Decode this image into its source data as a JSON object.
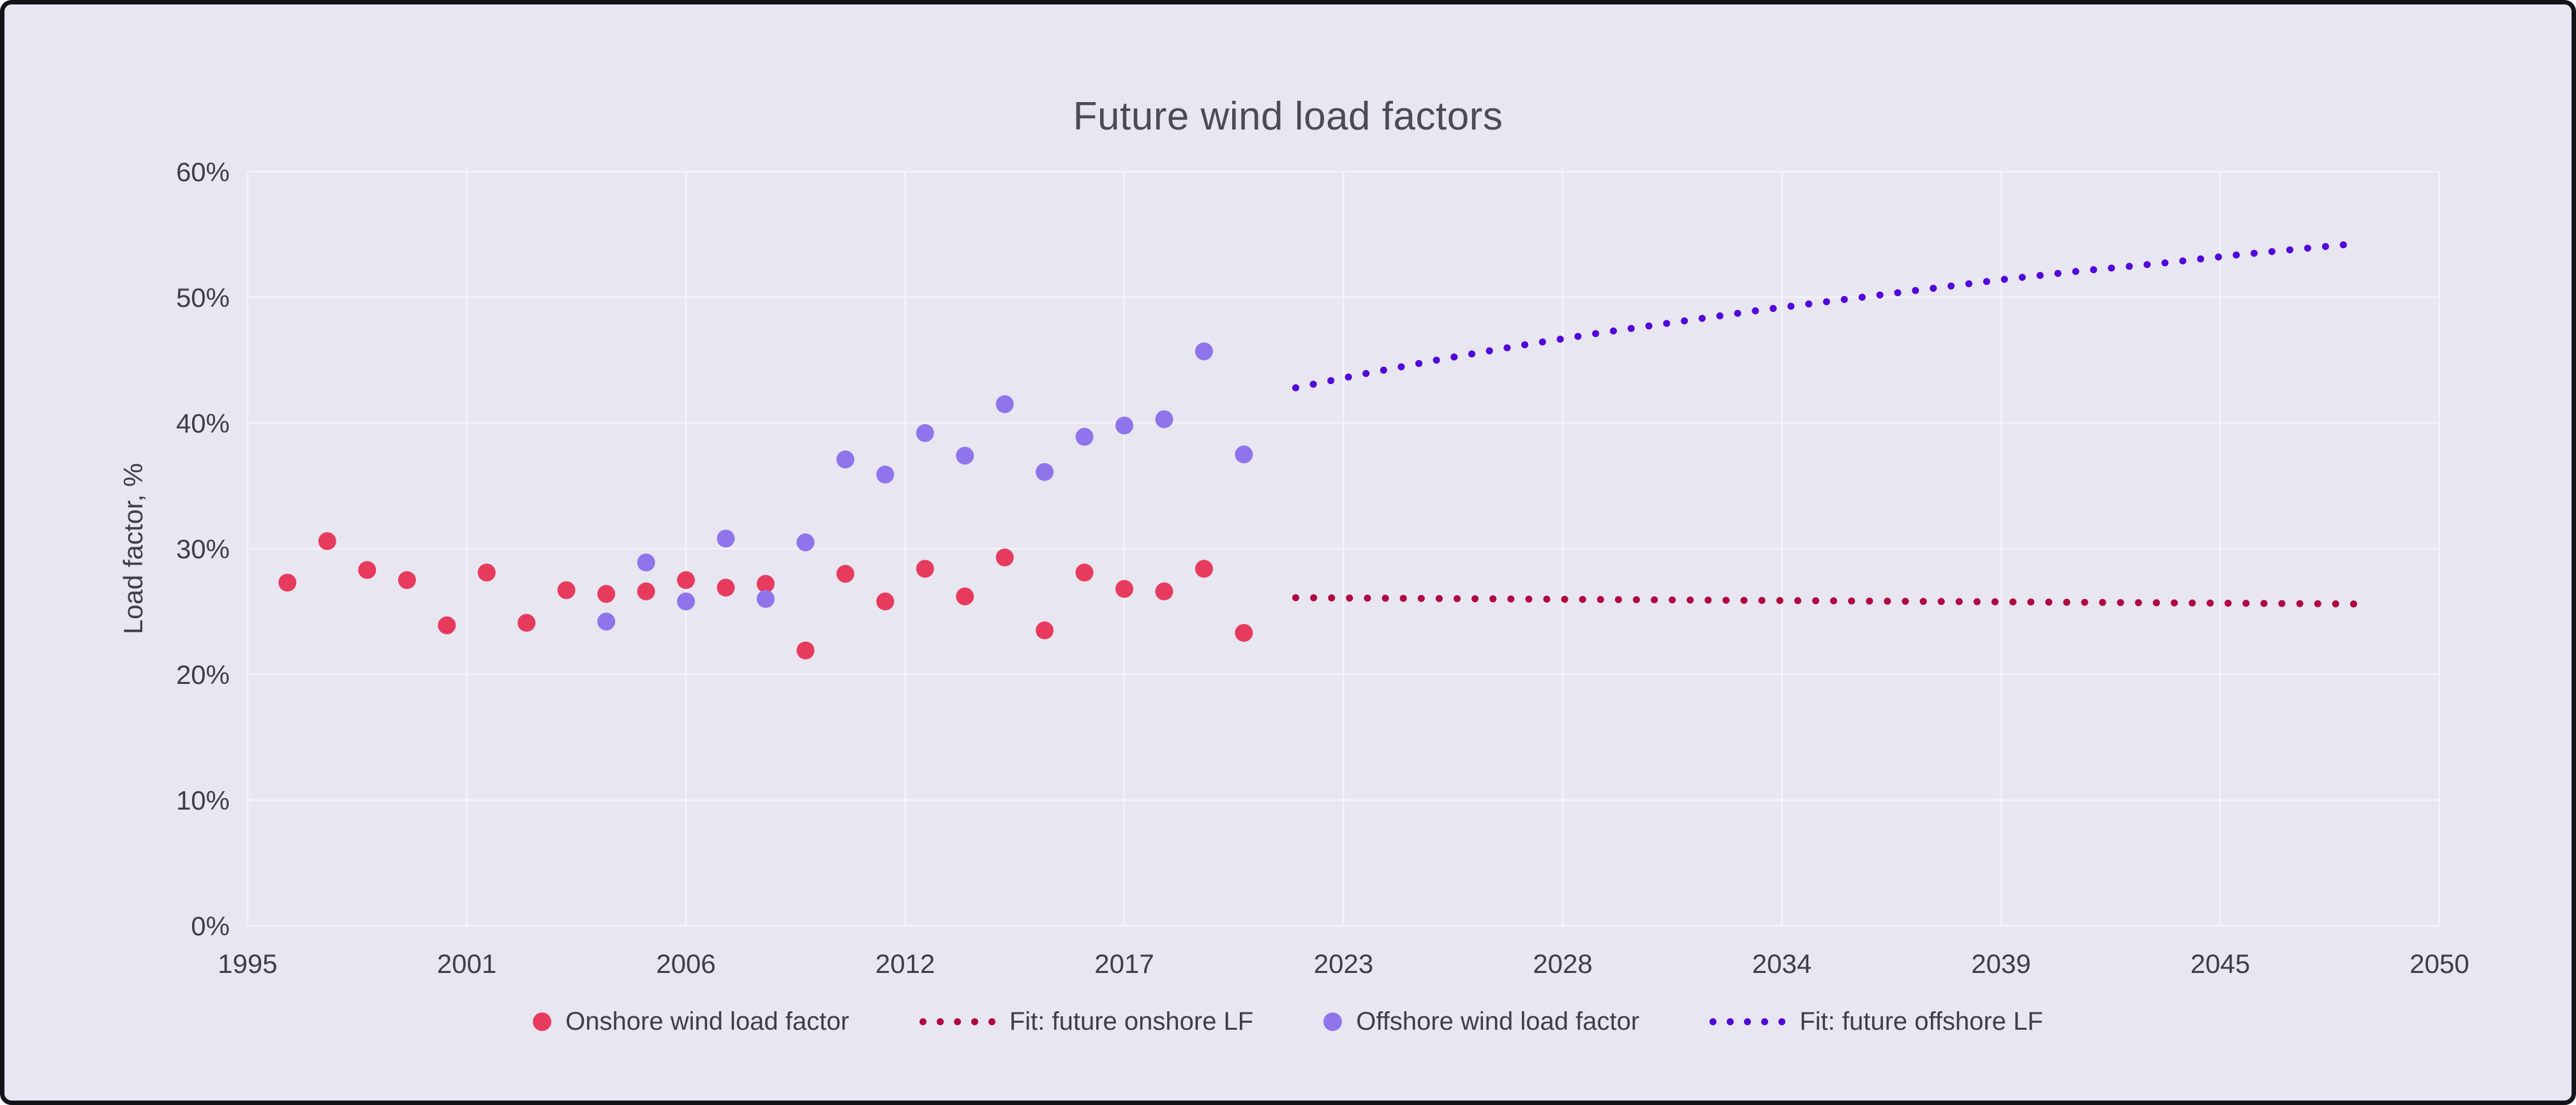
{
  "card": {
    "background": "#e7e6f1",
    "border_color": "#141418"
  },
  "theme": {
    "text_color": "#3e3e46",
    "title_color": "#4b4b52",
    "grid_color": "#f3f2f9"
  },
  "chart_data": {
    "type": "scatter",
    "title": "Future wind load factors",
    "xlabel": "",
    "ylabel": "Load factor, %",
    "xlim": [
      1995,
      2050
    ],
    "ylim": [
      0,
      60
    ],
    "grid": true,
    "legend_position": "bottom",
    "x_ticks": [
      {
        "value": 1995,
        "label": "1995"
      },
      {
        "value": 2000.5,
        "label": "2001"
      },
      {
        "value": 2006,
        "label": "2006"
      },
      {
        "value": 2011.5,
        "label": "2012"
      },
      {
        "value": 2017,
        "label": "2017"
      },
      {
        "value": 2022.5,
        "label": "2023"
      },
      {
        "value": 2028,
        "label": "2028"
      },
      {
        "value": 2033.5,
        "label": "2034"
      },
      {
        "value": 2039,
        "label": "2039"
      },
      {
        "value": 2044.5,
        "label": "2045"
      },
      {
        "value": 2050,
        "label": "2050"
      }
    ],
    "y_ticks": [
      {
        "value": 0,
        "label": "0%"
      },
      {
        "value": 10,
        "label": "10%"
      },
      {
        "value": 20,
        "label": "20%"
      },
      {
        "value": 30,
        "label": "30%"
      },
      {
        "value": 40,
        "label": "40%"
      },
      {
        "value": 50,
        "label": "50%"
      },
      {
        "value": 60,
        "label": "60%"
      }
    ],
    "series": [
      {
        "name": "Onshore wind load factor",
        "mode": "markers",
        "color": "#e73b5e",
        "points": [
          [
            1996,
            27.3
          ],
          [
            1997,
            30.6
          ],
          [
            1998,
            28.3
          ],
          [
            1999,
            27.5
          ],
          [
            2000,
            23.9
          ],
          [
            2001,
            28.1
          ],
          [
            2002,
            24.1
          ],
          [
            2003,
            26.7
          ],
          [
            2004,
            26.4
          ],
          [
            2005,
            26.6
          ],
          [
            2006,
            27.5
          ],
          [
            2007,
            26.9
          ],
          [
            2008,
            27.2
          ],
          [
            2009,
            21.9
          ],
          [
            2010,
            28.0
          ],
          [
            2011,
            25.8
          ],
          [
            2012,
            28.4
          ],
          [
            2013,
            26.2
          ],
          [
            2014,
            29.3
          ],
          [
            2015,
            23.5
          ],
          [
            2016,
            28.1
          ],
          [
            2017,
            26.8
          ],
          [
            2018,
            26.6
          ],
          [
            2019,
            28.4
          ],
          [
            2020,
            23.3
          ]
        ]
      },
      {
        "name": "Fit: future onshore LF",
        "mode": "dotted-line",
        "color": "#b00b41",
        "points": [
          [
            2021.3,
            26.1
          ],
          [
            2048,
            25.6
          ]
        ]
      },
      {
        "name": "Offshore wind load factor",
        "mode": "markers",
        "color": "#8f74ec",
        "points": [
          [
            2004,
            24.2
          ],
          [
            2005,
            28.9
          ],
          [
            2006,
            25.8
          ],
          [
            2007,
            30.8
          ],
          [
            2008,
            26.0
          ],
          [
            2009,
            30.5
          ],
          [
            2010,
            37.1
          ],
          [
            2011,
            35.9
          ],
          [
            2012,
            39.2
          ],
          [
            2013,
            37.4
          ],
          [
            2014,
            41.5
          ],
          [
            2015,
            36.1
          ],
          [
            2016,
            38.9
          ],
          [
            2017,
            39.8
          ],
          [
            2018,
            40.3
          ],
          [
            2019,
            45.7
          ],
          [
            2020,
            37.5
          ]
        ]
      },
      {
        "name": "Fit: future offshore LF",
        "mode": "dotted-line",
        "color": "#5209d9",
        "points": [
          [
            2021.3,
            42.8
          ],
          [
            2023,
            43.9
          ],
          [
            2025,
            45.1
          ],
          [
            2027,
            46.2
          ],
          [
            2029,
            47.2
          ],
          [
            2031,
            48.1
          ],
          [
            2033,
            49.0
          ],
          [
            2035,
            49.8
          ],
          [
            2037,
            50.6
          ],
          [
            2039,
            51.4
          ],
          [
            2041,
            52.1
          ],
          [
            2043,
            52.7
          ],
          [
            2045,
            53.4
          ],
          [
            2047,
            54.0
          ],
          [
            2048,
            54.3
          ]
        ]
      }
    ]
  }
}
